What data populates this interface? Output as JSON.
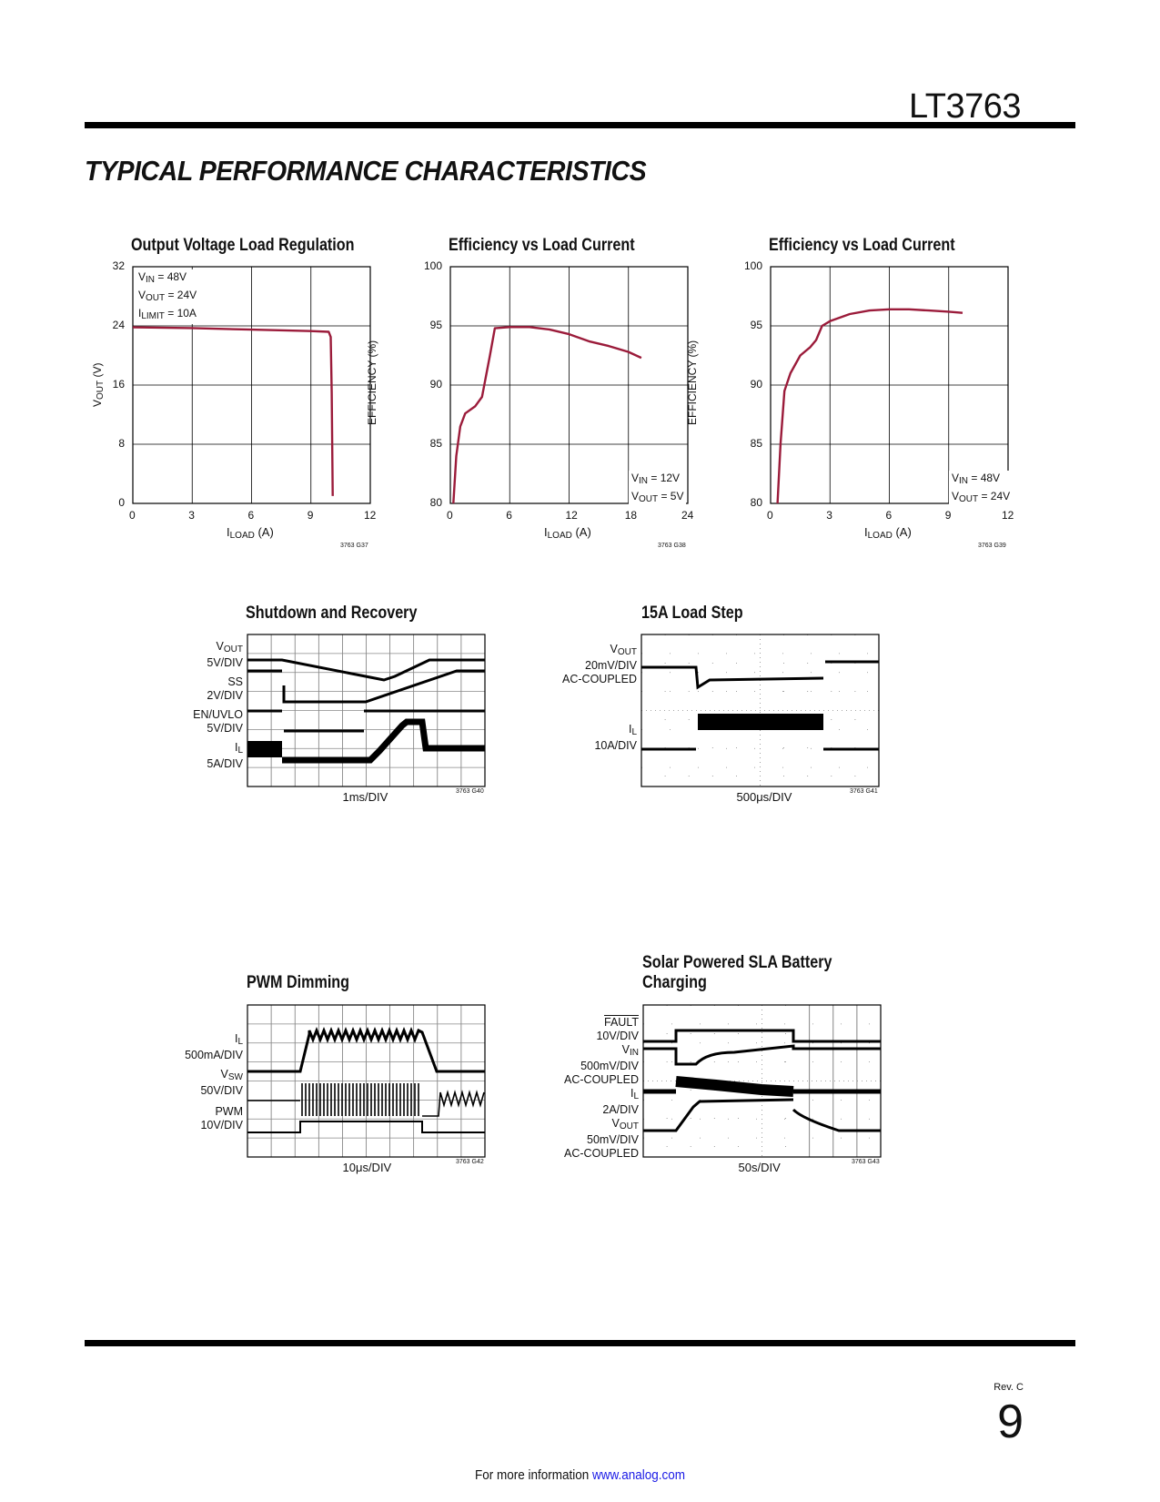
{
  "header": {
    "part_number": "LT3763",
    "section_title": "TYPICAL PERFORMANCE CHARACTERISTICS"
  },
  "charts": [
    {
      "title": "Output Voltage Load Regulation",
      "yticks": [
        "32",
        "24",
        "16",
        "8",
        "0"
      ],
      "xticks": [
        "0",
        "3",
        "6",
        "9",
        "12"
      ],
      "ylabel_main": "V",
      "ylabel_sub": "OUT",
      "ylabel_rest": " (V)",
      "xlabel_main": "I",
      "xlabel_sub": "LOAD",
      "xlabel_rest": " (A)",
      "code": "3763 G37",
      "annotations": [
        {
          "main": "V",
          "sub": "IN",
          "rest": " = 48V"
        },
        {
          "main": "V",
          "sub": "OUT",
          "rest": " = 24V"
        },
        {
          "main": "I",
          "sub": "LIMIT",
          "rest": " = 10A"
        }
      ]
    },
    {
      "title": "Efficiency vs Load Current",
      "yticks": [
        "100",
        "95",
        "90",
        "85",
        "80"
      ],
      "xticks": [
        "0",
        "6",
        "12",
        "18",
        "24"
      ],
      "ylabel": "EFFICIENCY (%)",
      "xlabel_main": "I",
      "xlabel_sub": "LOAD",
      "xlabel_rest": " (A)",
      "code": "3763 G38",
      "annotations": [
        {
          "main": "V",
          "sub": "IN",
          "rest": " = 12V"
        },
        {
          "main": "V",
          "sub": "OUT",
          "rest": " = 5V"
        }
      ]
    },
    {
      "title": "Efficiency vs Load Current",
      "yticks": [
        "100",
        "95",
        "90",
        "85",
        "80"
      ],
      "xticks": [
        "0",
        "3",
        "6",
        "9",
        "12"
      ],
      "ylabel": "EFFICIENCY (%)",
      "xlabel_main": "I",
      "xlabel_sub": "LOAD",
      "xlabel_rest": " (A)",
      "code": "3763 G39",
      "annotations": [
        {
          "main": "V",
          "sub": "IN",
          "rest": " = 48V"
        },
        {
          "main": "V",
          "sub": "OUT",
          "rest": " = 24V"
        }
      ]
    }
  ],
  "chart_data": [
    {
      "type": "line",
      "title": "Output Voltage Load Regulation",
      "xlabel": "ILOAD (A)",
      "ylabel": "VOUT (V)",
      "xlim": [
        0,
        12
      ],
      "ylim": [
        0,
        32
      ],
      "grid": true,
      "x": [
        0,
        3,
        6,
        9,
        9.9,
        10,
        10.05,
        10.1
      ],
      "y": [
        23.8,
        23.7,
        23.5,
        23.3,
        23.2,
        22.5,
        15,
        1
      ],
      "color": "#9b1b3a"
    },
    {
      "type": "line",
      "title": "Efficiency vs Load Current",
      "xlabel": "ILOAD (A)",
      "ylabel": "EFFICIENCY (%)",
      "xlim": [
        0,
        24
      ],
      "ylim": [
        80,
        100
      ],
      "grid": true,
      "x": [
        0.3,
        0.6,
        1,
        1.5,
        2.5,
        3.2,
        4,
        4.5,
        6,
        8,
        10,
        12,
        14,
        16,
        18,
        19.3
      ],
      "y": [
        80,
        84,
        86.5,
        87.6,
        88.2,
        89,
        92.5,
        94.8,
        94.9,
        94.9,
        94.7,
        94.3,
        93.7,
        93.3,
        92.8,
        92.3
      ],
      "color": "#9b1b3a"
    },
    {
      "type": "line",
      "title": "Efficiency vs Load Current",
      "xlabel": "ILOAD (A)",
      "ylabel": "EFFICIENCY (%)",
      "xlim": [
        0,
        12
      ],
      "ylim": [
        80,
        100
      ],
      "grid": true,
      "x": [
        0.35,
        0.5,
        0.7,
        1,
        1.5,
        2,
        2.3,
        2.6,
        3,
        4,
        5,
        6,
        7,
        8,
        9,
        9.7
      ],
      "y": [
        80,
        85,
        89.5,
        91,
        92.5,
        93.2,
        93.8,
        95,
        95.4,
        96,
        96.3,
        96.4,
        96.4,
        96.3,
        96.2,
        96.1
      ],
      "color": "#9b1b3a"
    }
  ],
  "scopes": [
    {
      "title": "Shutdown and Recovery",
      "timebase": "1ms/DIV",
      "code": "3763 G40",
      "labels": [
        "V|OUT|",
        "5V/DIV",
        "SS",
        "2V/DIV",
        "EN/UVLO",
        "5V/DIV",
        "I|L|",
        "5A/DIV"
      ]
    },
    {
      "title": "15A Load Step",
      "timebase": "500μs/DIV",
      "code": "3763 G41",
      "labels": [
        "V|OUT|",
        "20mV/DIV",
        "AC-COUPLED",
        "I|L|",
        "10A/DIV"
      ]
    },
    {
      "title": "PWM Dimming",
      "timebase": "10μs/DIV",
      "code": "3763 G42",
      "labels": [
        "I|L|",
        "500mA/DIV",
        "V|SW|",
        "50V/DIV",
        "PWM",
        "10V/DIV"
      ]
    },
    {
      "title_line1": "Solar Powered SLA Battery",
      "title_line2": "Charging",
      "timebase": "50s/DIV",
      "code": "3763 G43",
      "labels": [
        "FAULT",
        "10V/DIV",
        "V|IN|",
        "500mV/DIV",
        "AC-COUPLED",
        "I|L|",
        "2A/DIV",
        "V|OUT|",
        "50mV/DIV",
        "AC-COUPLED"
      ]
    }
  ],
  "footer": {
    "text": "For more information ",
    "link": "www.analog.com",
    "revision": "Rev. C",
    "page_number": "9"
  }
}
